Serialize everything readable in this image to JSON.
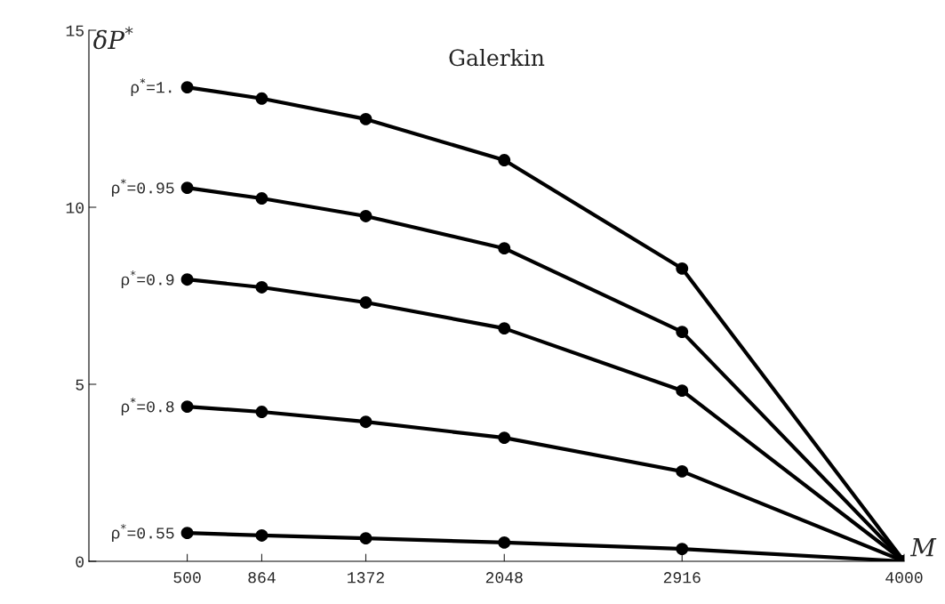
{
  "chart_data": {
    "type": "line",
    "title": "Galerkin",
    "xlabel": "M",
    "ylabel": "δP$^{*}$",
    "x": [
      500,
      864,
      1372,
      2048,
      2916,
      4000
    ],
    "series": [
      {
        "name": "ρ$^{*}$=1.",
        "color": "#000000",
        "values": [
          13.39,
          13.07,
          12.49,
          11.33,
          8.27,
          0
        ]
      },
      {
        "name": "ρ$^{*}$=0.95",
        "color": "#000000",
        "values": [
          10.55,
          10.25,
          9.75,
          8.84,
          6.48,
          0
        ]
      },
      {
        "name": "ρ$^{*}$=0.9",
        "color": "#000000",
        "values": [
          7.96,
          7.74,
          7.31,
          6.58,
          4.82,
          0
        ]
      },
      {
        "name": "ρ$^{*}$=0.8",
        "color": "#000000",
        "values": [
          4.37,
          4.22,
          3.94,
          3.49,
          2.54,
          0
        ]
      },
      {
        "name": "ρ$^{*}$=0.55",
        "color": "#000000",
        "values": [
          0.8,
          0.73,
          0.65,
          0.53,
          0.35,
          0
        ]
      }
    ],
    "xlim": [
      20,
      4000
    ],
    "ylim": [
      0,
      15
    ],
    "xticks": [
      500,
      864,
      1372,
      2048,
      2916,
      4000
    ],
    "yticks": [
      0,
      5,
      10,
      15
    ],
    "grid": false,
    "legend": false,
    "marker": "circle",
    "line_style": "solid"
  }
}
